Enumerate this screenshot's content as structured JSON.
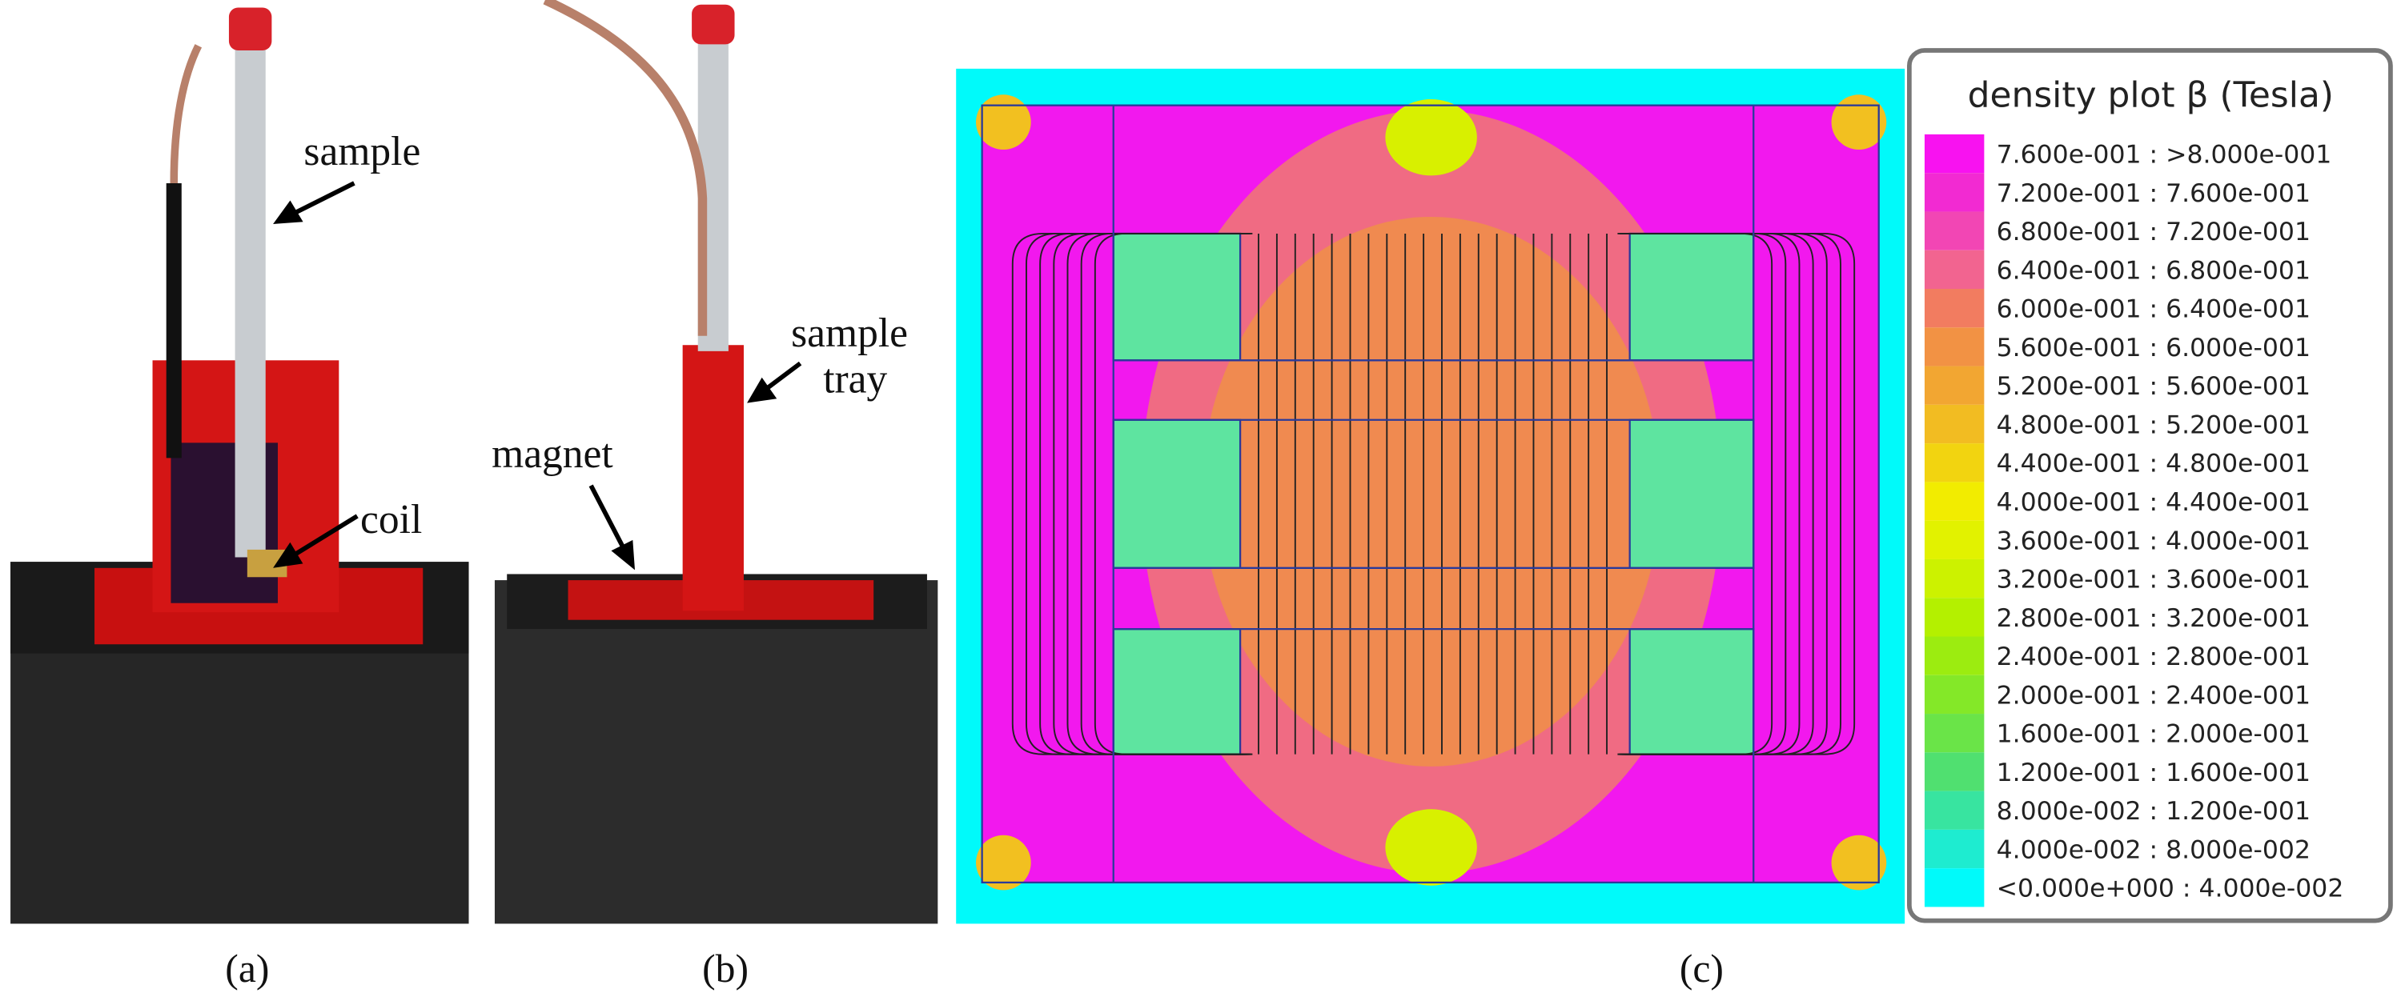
{
  "panels": [
    {
      "label": "(a)",
      "annotations": [
        "sample",
        "coil"
      ]
    },
    {
      "label": "(b)",
      "annotations": [
        "magnet",
        "sample",
        "tray"
      ]
    },
    {
      "label": "(c)"
    }
  ],
  "plot": {
    "legend_title": "density plot β (Tesla)",
    "legend": [
      {
        "label": "7.600e-001 : >8.000e-001",
        "color": "#f812f0"
      },
      {
        "label": "7.200e-001 : 7.600e-001",
        "color": "#f22ad2"
      },
      {
        "label": "6.800e-001 : 7.200e-001",
        "color": "#f246b4"
      },
      {
        "label": "6.400e-001 : 6.800e-001",
        "color": "#f26490"
      },
      {
        "label": "6.000e-001 : 6.400e-001",
        "color": "#f27c60"
      },
      {
        "label": "5.600e-001 : 6.000e-001",
        "color": "#f29244"
      },
      {
        "label": "5.200e-001 : 5.600e-001",
        "color": "#f2a632"
      },
      {
        "label": "4.800e-001 : 5.200e-001",
        "color": "#f2bc22"
      },
      {
        "label": "4.400e-001 : 4.800e-001",
        "color": "#f2d410"
      },
      {
        "label": "4.000e-001 : 4.400e-001",
        "color": "#f2ec00"
      },
      {
        "label": "3.600e-001 : 4.000e-001",
        "color": "#e2f200"
      },
      {
        "label": "3.200e-001 : 3.600e-001",
        "color": "#ccf200"
      },
      {
        "label": "2.800e-001 : 3.200e-001",
        "color": "#b4f000"
      },
      {
        "label": "2.400e-001 : 2.800e-001",
        "color": "#9cec10"
      },
      {
        "label": "2.000e-001 : 2.400e-001",
        "color": "#84e828"
      },
      {
        "label": "1.600e-001 : 2.000e-001",
        "color": "#6ae448"
      },
      {
        "label": "1.200e-001 : 1.600e-001",
        "color": "#50e070"
      },
      {
        "label": "8.000e-002 : 1.200e-001",
        "color": "#38e4a0"
      },
      {
        "label": "4.000e-002 : 8.000e-002",
        "color": "#1eecd0"
      },
      {
        "label": "<0.000e+000 : 4.000e-002",
        "color": "#00fafa"
      }
    ]
  }
}
